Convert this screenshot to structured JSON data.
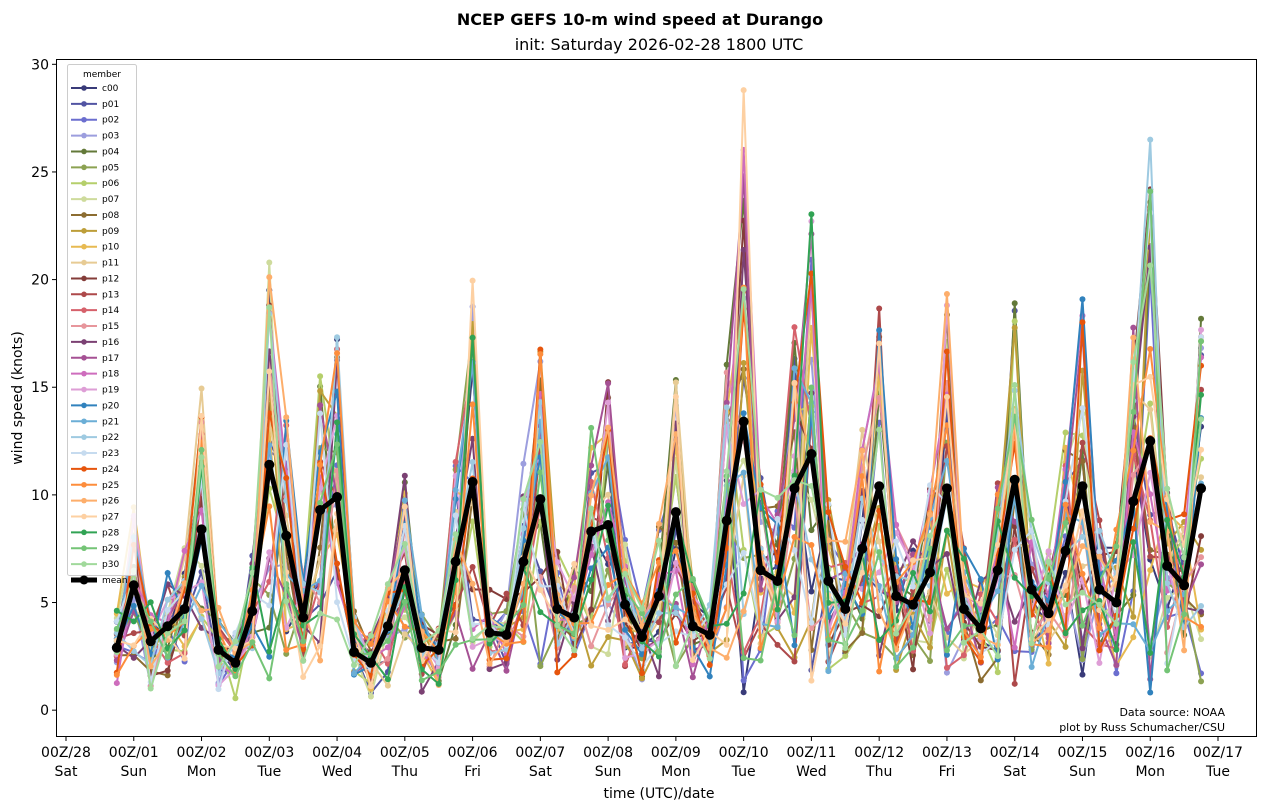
{
  "chart_data": {
    "type": "line",
    "title": "NCEP GEFS 10-m wind speed at Durango",
    "subtitle": "init: Saturday 2026-02-28 1800 UTC",
    "xlabel": "time (UTC)/date",
    "ylabel": "wind speed (knots)",
    "ylim": [
      -1.2,
      30.2
    ],
    "yticks": [
      "0",
      "5",
      "10",
      "15",
      "20",
      "25",
      "30"
    ],
    "ytick_values": [
      0,
      5,
      10,
      15,
      20,
      25,
      30
    ],
    "xlim_hours": [
      -1,
      421
    ],
    "xticks": [
      {
        "line1": "00Z/28",
        "line2": "Sat"
      },
      {
        "line1": "00Z/01",
        "line2": "Sun"
      },
      {
        "line1": "00Z/02",
        "line2": "Mon"
      },
      {
        "line1": "00Z/03",
        "line2": "Tue"
      },
      {
        "line1": "00Z/04",
        "line2": "Wed"
      },
      {
        "line1": "00Z/05",
        "line2": "Thu"
      },
      {
        "line1": "00Z/06",
        "line2": "Fri"
      },
      {
        "line1": "00Z/07",
        "line2": "Sat"
      },
      {
        "line1": "00Z/08",
        "line2": "Sun"
      },
      {
        "line1": "00Z/09",
        "line2": "Mon"
      },
      {
        "line1": "00Z/10",
        "line2": "Tue"
      },
      {
        "line1": "00Z/11",
        "line2": "Wed"
      },
      {
        "line1": "00Z/12",
        "line2": "Thu"
      },
      {
        "line1": "00Z/13",
        "line2": "Fri"
      },
      {
        "line1": "00Z/14",
        "line2": "Sat"
      },
      {
        "line1": "00Z/15",
        "line2": "Sun"
      },
      {
        "line1": "00Z/16",
        "line2": "Mon"
      },
      {
        "line1": "00Z/17",
        "line2": "Tue"
      }
    ],
    "x_start_hours_after_first_tick": 18,
    "x_step_hours": 6,
    "legend": {
      "title": "member",
      "placement": "upper-left"
    },
    "series": [
      {
        "name": "c00",
        "color": "#393b79"
      },
      {
        "name": "p01",
        "color": "#5254a3"
      },
      {
        "name": "p02",
        "color": "#6b6ecf"
      },
      {
        "name": "p03",
        "color": "#9c9ede"
      },
      {
        "name": "p04",
        "color": "#637939"
      },
      {
        "name": "p05",
        "color": "#8ca252"
      },
      {
        "name": "p06",
        "color": "#b5cf6b"
      },
      {
        "name": "p07",
        "color": "#cedb9c"
      },
      {
        "name": "p08",
        "color": "#8c6d31"
      },
      {
        "name": "p09",
        "color": "#bd9e39"
      },
      {
        "name": "p10",
        "color": "#e7ba52"
      },
      {
        "name": "p11",
        "color": "#e7cb94"
      },
      {
        "name": "p12",
        "color": "#843c39"
      },
      {
        "name": "p13",
        "color": "#ad494a"
      },
      {
        "name": "p14",
        "color": "#d6616b"
      },
      {
        "name": "p15",
        "color": "#e7969c"
      },
      {
        "name": "p16",
        "color": "#7b4173"
      },
      {
        "name": "p17",
        "color": "#a55194"
      },
      {
        "name": "p18",
        "color": "#ce6dbd"
      },
      {
        "name": "p19",
        "color": "#de9ed6"
      },
      {
        "name": "p20",
        "color": "#3182bd"
      },
      {
        "name": "p21",
        "color": "#6baed6"
      },
      {
        "name": "p22",
        "color": "#9ecae1"
      },
      {
        "name": "p23",
        "color": "#c6dbef"
      },
      {
        "name": "p24",
        "color": "#e6550d"
      },
      {
        "name": "p25",
        "color": "#fd8d3c"
      },
      {
        "name": "p26",
        "color": "#fdae6b"
      },
      {
        "name": "p27",
        "color": "#fdd0a2"
      },
      {
        "name": "p28",
        "color": "#31a354"
      },
      {
        "name": "p29",
        "color": "#74c476"
      },
      {
        "name": "p30",
        "color": "#a1d99b"
      }
    ],
    "mean": {
      "name": "mean",
      "color": "#000000",
      "values": [
        2.9,
        5.8,
        3.2,
        3.9,
        4.7,
        8.4,
        2.8,
        2.2,
        4.6,
        11.4,
        8.1,
        4.3,
        9.3,
        9.9,
        2.7,
        2.2,
        3.9,
        6.5,
        2.9,
        2.8,
        6.9,
        10.6,
        3.6,
        3.5,
        6.9,
        9.8,
        4.7,
        4.3,
        8.3,
        8.6,
        4.9,
        3.4,
        5.3,
        9.2,
        3.9,
        3.5,
        8.8,
        13.4,
        6.5,
        6.0,
        10.3,
        11.9,
        6.0,
        4.7,
        7.5,
        10.4,
        5.3,
        4.9,
        6.4,
        10.3,
        4.7,
        3.8,
        6.5,
        10.7,
        5.6,
        4.5,
        7.4,
        10.4,
        5.6,
        5.0,
        9.7,
        12.5,
        6.7,
        5.8,
        10.3
      ]
    },
    "notable_peaks": [
      {
        "member": "p27",
        "value": 28.8
      },
      {
        "member": "p22",
        "value": 26.5
      },
      {
        "member": "p17",
        "value": 24.8
      },
      {
        "member": "p29",
        "value": 24.1
      },
      {
        "member": "p05",
        "value": 23.6
      }
    ],
    "annotations": [
      "Data source: NOAA",
      "plot by Russ Schumacher/CSU"
    ]
  }
}
